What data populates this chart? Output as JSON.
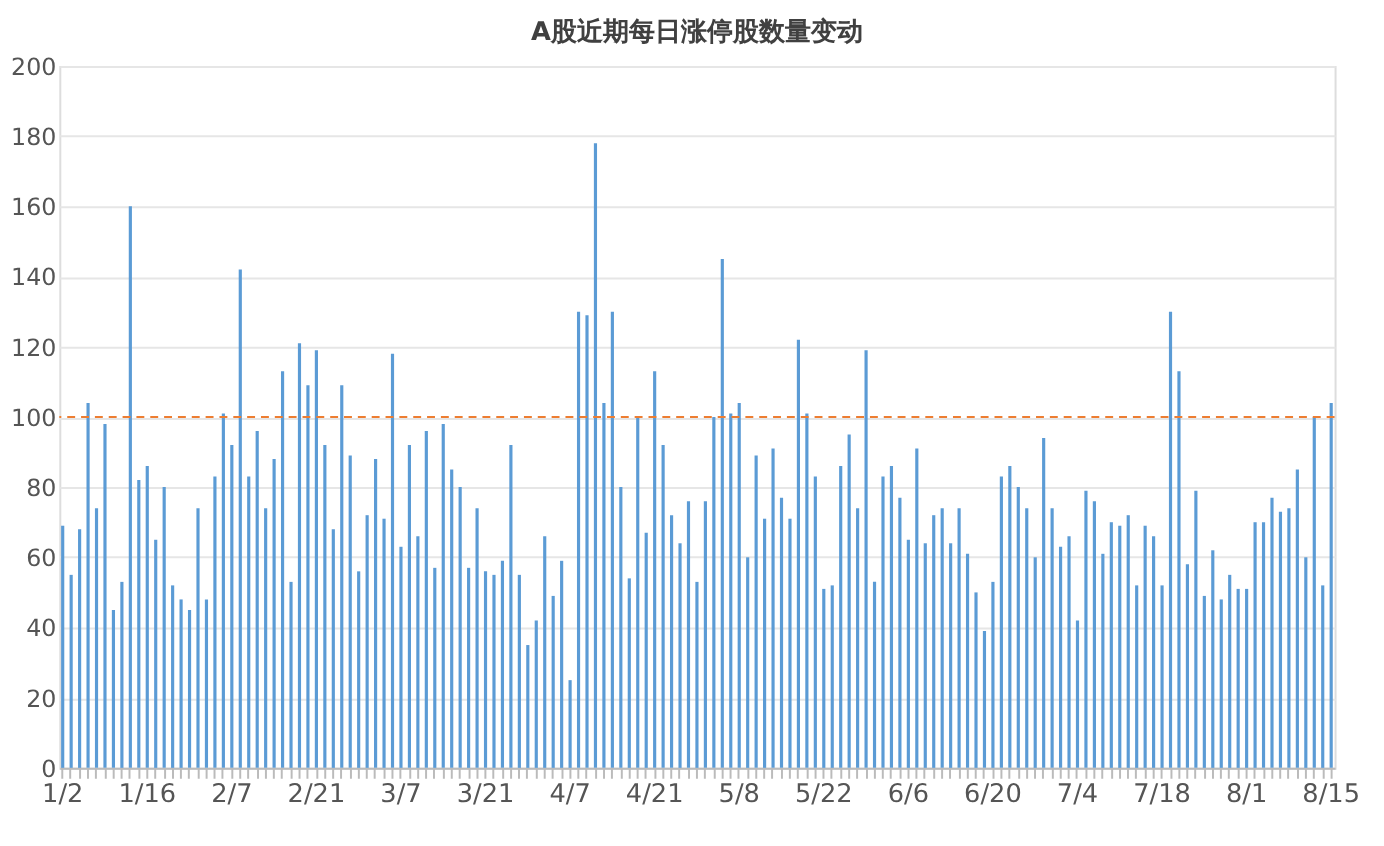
{
  "chart_data": {
    "type": "bar",
    "title": "A股近期每日涨停股数量变动",
    "categories": [
      "1/2",
      null,
      null,
      null,
      null,
      null,
      null,
      null,
      null,
      null,
      "1/16",
      null,
      null,
      null,
      null,
      null,
      null,
      null,
      null,
      null,
      "2/7",
      null,
      null,
      null,
      null,
      null,
      null,
      null,
      null,
      null,
      "2/21",
      null,
      null,
      null,
      null,
      null,
      null,
      null,
      null,
      null,
      "3/7",
      null,
      null,
      null,
      null,
      null,
      null,
      null,
      null,
      null,
      "3/21",
      null,
      null,
      null,
      null,
      null,
      null,
      null,
      null,
      null,
      "4/7",
      null,
      null,
      null,
      null,
      null,
      null,
      null,
      null,
      null,
      "4/21",
      null,
      null,
      null,
      null,
      null,
      null,
      null,
      null,
      null,
      "5/8",
      null,
      null,
      null,
      null,
      null,
      null,
      null,
      null,
      null,
      "5/22",
      null,
      null,
      null,
      null,
      null,
      null,
      null,
      null,
      null,
      "6/6",
      null,
      null,
      null,
      null,
      null,
      null,
      null,
      null,
      null,
      "6/20",
      null,
      null,
      null,
      null,
      null,
      null,
      null,
      null,
      null,
      "7/4",
      null,
      null,
      null,
      null,
      null,
      null,
      null,
      null,
      null,
      "7/18",
      null,
      null,
      null,
      null,
      null,
      null,
      null,
      null,
      null,
      "8/1",
      null,
      null,
      null,
      null,
      null,
      null,
      null,
      null,
      null,
      "8/15"
    ],
    "values": [
      69,
      55,
      68,
      104,
      74,
      98,
      45,
      53,
      160,
      82,
      86,
      65,
      80,
      52,
      48,
      45,
      74,
      48,
      83,
      101,
      92,
      142,
      83,
      96,
      74,
      88,
      113,
      53,
      121,
      109,
      119,
      92,
      68,
      109,
      89,
      56,
      72,
      88,
      71,
      118,
      63,
      92,
      66,
      96,
      57,
      98,
      85,
      80,
      57,
      74,
      56,
      55,
      59,
      92,
      55,
      35,
      42,
      66,
      49,
      59,
      25,
      130,
      129,
      178,
      104,
      130,
      80,
      54,
      100,
      67,
      113,
      92,
      72,
      64,
      76,
      53,
      76,
      100,
      145,
      101,
      104,
      60,
      89,
      71,
      91,
      77,
      71,
      122,
      101,
      83,
      51,
      52,
      86,
      95,
      74,
      119,
      53,
      83,
      86,
      77,
      65,
      91,
      64,
      72,
      74,
      64,
      74,
      61,
      50,
      39,
      53,
      83,
      86,
      80,
      74,
      60,
      94,
      74,
      63,
      66,
      42,
      79,
      76,
      61,
      70,
      69,
      72,
      52,
      69,
      66,
      52,
      130,
      113,
      58,
      79,
      49,
      62,
      48,
      55,
      51,
      51,
      70,
      70,
      77,
      73,
      74,
      85,
      60,
      100,
      52,
      104
    ],
    "color": "#5b9bd5",
    "ylim": [
      0,
      200
    ],
    "yticks": [
      0,
      20,
      40,
      60,
      80,
      100,
      120,
      140,
      160,
      180,
      200
    ],
    "grid": "y",
    "ref_lines": [
      {
        "axis": "y",
        "value": 100,
        "color": "#ed7d31",
        "line_style": "dashed"
      }
    ]
  }
}
